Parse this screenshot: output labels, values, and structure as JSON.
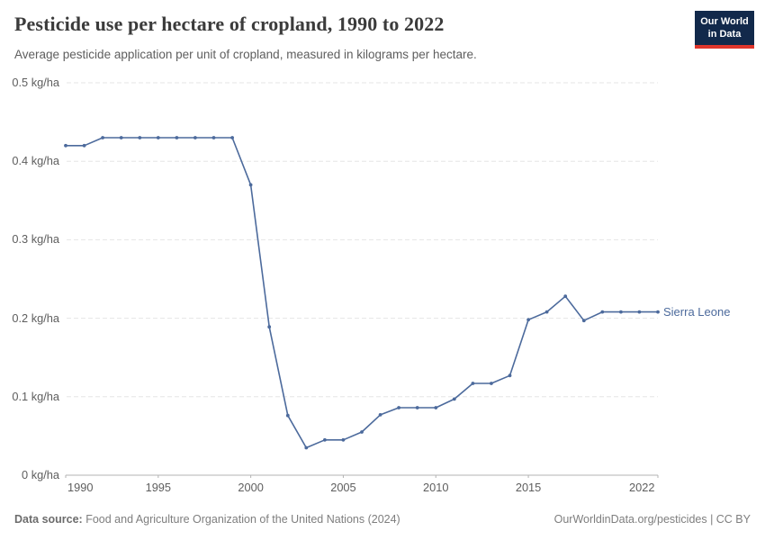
{
  "header": {
    "title": "Pesticide use per hectare of cropland, 1990 to 2022",
    "subtitle": "Average pesticide application per unit of cropland, measured in kilograms per hectare.",
    "logo": {
      "line1": "Our World",
      "line2": "in Data"
    }
  },
  "chart_data": {
    "type": "line",
    "title": "Pesticide use per hectare of cropland, 1990 to 2022",
    "xlabel": "",
    "ylabel": "kg/ha",
    "xlim": [
      1990,
      2022
    ],
    "ylim": [
      0,
      0.5
    ],
    "grid": "horizontal-dashed",
    "legend_position": "end-of-line-label",
    "x": [
      1990,
      1991,
      1992,
      1993,
      1994,
      1995,
      1996,
      1997,
      1998,
      1999,
      2000,
      2001,
      2002,
      2003,
      2004,
      2005,
      2006,
      2007,
      2008,
      2009,
      2010,
      2011,
      2012,
      2013,
      2014,
      2015,
      2016,
      2017,
      2018,
      2019,
      2020,
      2021,
      2022
    ],
    "series": [
      {
        "name": "Sierra Leone",
        "color": "#4C6A9C",
        "values": [
          0.42,
          0.42,
          0.43,
          0.43,
          0.43,
          0.43,
          0.43,
          0.43,
          0.43,
          0.43,
          0.37,
          0.189,
          0.076,
          0.035,
          0.045,
          0.045,
          0.055,
          0.077,
          0.086,
          0.086,
          0.086,
          0.097,
          0.117,
          0.117,
          0.127,
          0.198,
          0.208,
          0.228,
          0.197,
          0.208,
          0.208,
          0.208,
          0.208
        ]
      }
    ],
    "x_ticks": [
      {
        "year": 1990,
        "label": "1990"
      },
      {
        "year": 1995,
        "label": "1995"
      },
      {
        "year": 2000,
        "label": "2000"
      },
      {
        "year": 2005,
        "label": "2005"
      },
      {
        "year": 2010,
        "label": "2010"
      },
      {
        "year": 2015,
        "label": "2015"
      },
      {
        "year": 2022,
        "label": "2022"
      }
    ],
    "y_ticks": [
      {
        "value": 0,
        "label": "0 kg/ha"
      },
      {
        "value": 0.1,
        "label": "0.1 kg/ha"
      },
      {
        "value": 0.2,
        "label": "0.2 kg/ha"
      },
      {
        "value": 0.3,
        "label": "0.3 kg/ha"
      },
      {
        "value": 0.4,
        "label": "0.4 kg/ha"
      },
      {
        "value": 0.5,
        "label": "0.5 kg/ha"
      }
    ]
  },
  "footer": {
    "datasource_label": "Data source:",
    "datasource_text": " Food and Agriculture Organization of the United Nations (2024)",
    "attribution": "OurWorldinData.org/pesticides | CC BY"
  },
  "colors": {
    "accent_line": "#4C6A9C",
    "marker": "#4C6A9C",
    "grid": "#E5E5E5",
    "axis": "#B3B3B3",
    "tick_text": "#5E5E5E",
    "logo_bg": "#12294B",
    "logo_stripe": "#E0352B"
  }
}
